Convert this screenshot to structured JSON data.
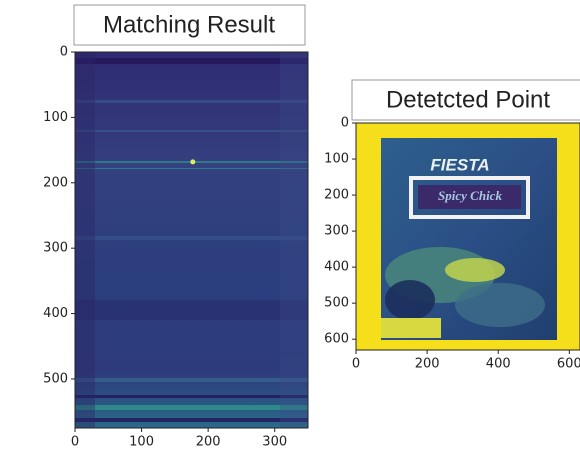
{
  "chart_data": [
    {
      "type": "image",
      "title": "Matching Result",
      "xlim": [
        0,
        350
      ],
      "xticks": [
        0,
        100,
        200,
        300
      ],
      "ylim": [
        575,
        0
      ],
      "yticks": [
        0,
        100,
        200,
        300,
        400,
        500
      ],
      "peak": {
        "x": 177,
        "y": 168
      }
    },
    {
      "type": "image",
      "title": "Detetcted Point",
      "xlim": [
        0,
        630
      ],
      "xticks": [
        0,
        200,
        400,
        600
      ],
      "ylim": [
        630,
        0
      ],
      "yticks": [
        0,
        100,
        200,
        300,
        400,
        500,
        600
      ],
      "annotations": [
        "FIESTA",
        "Spicy Chick"
      ]
    }
  ]
}
